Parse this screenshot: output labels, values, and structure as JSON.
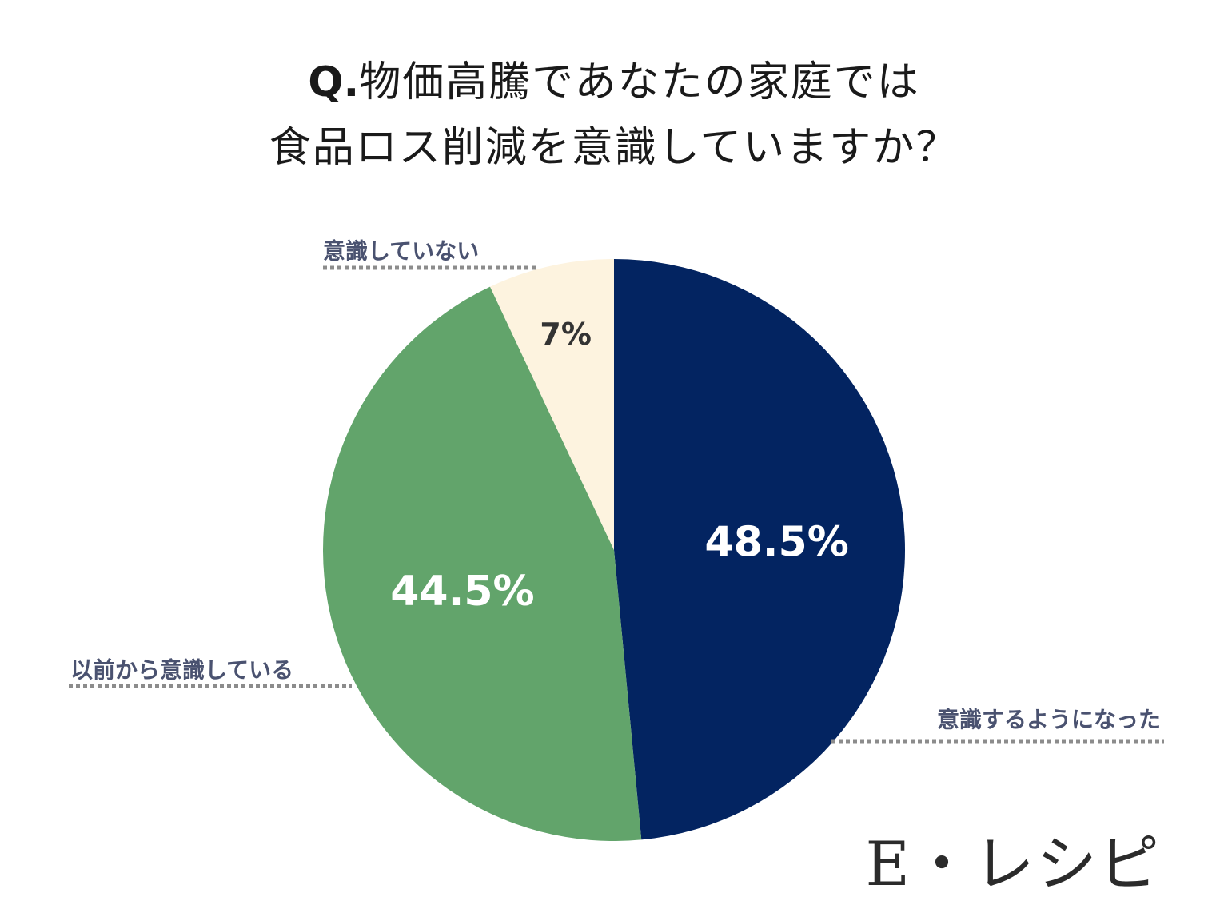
{
  "title": {
    "prefix": "Q.",
    "line1": "物価高騰であなたの家庭では",
    "line2": "食品ロス削減を意識していますか？"
  },
  "chart_data": {
    "type": "pie",
    "start": "12 o'clock",
    "direction": "clockwise",
    "slices": [
      {
        "label": "意識するようになった",
        "value": 48.5,
        "display": "48.5%",
        "color": "#032461",
        "text_color": "#ffffff"
      },
      {
        "label": "以前から意識している",
        "value": 44.5,
        "display": "44.5%",
        "color": "#62a46b",
        "text_color": "#ffffff"
      },
      {
        "label": "意識していない",
        "value": 7,
        "display": "7%",
        "color": "#fdf3df",
        "text_color": "#333333"
      }
    ],
    "legend": "callout labels with dotted leader lines"
  },
  "brand": {
    "text": "E・レシピ"
  }
}
